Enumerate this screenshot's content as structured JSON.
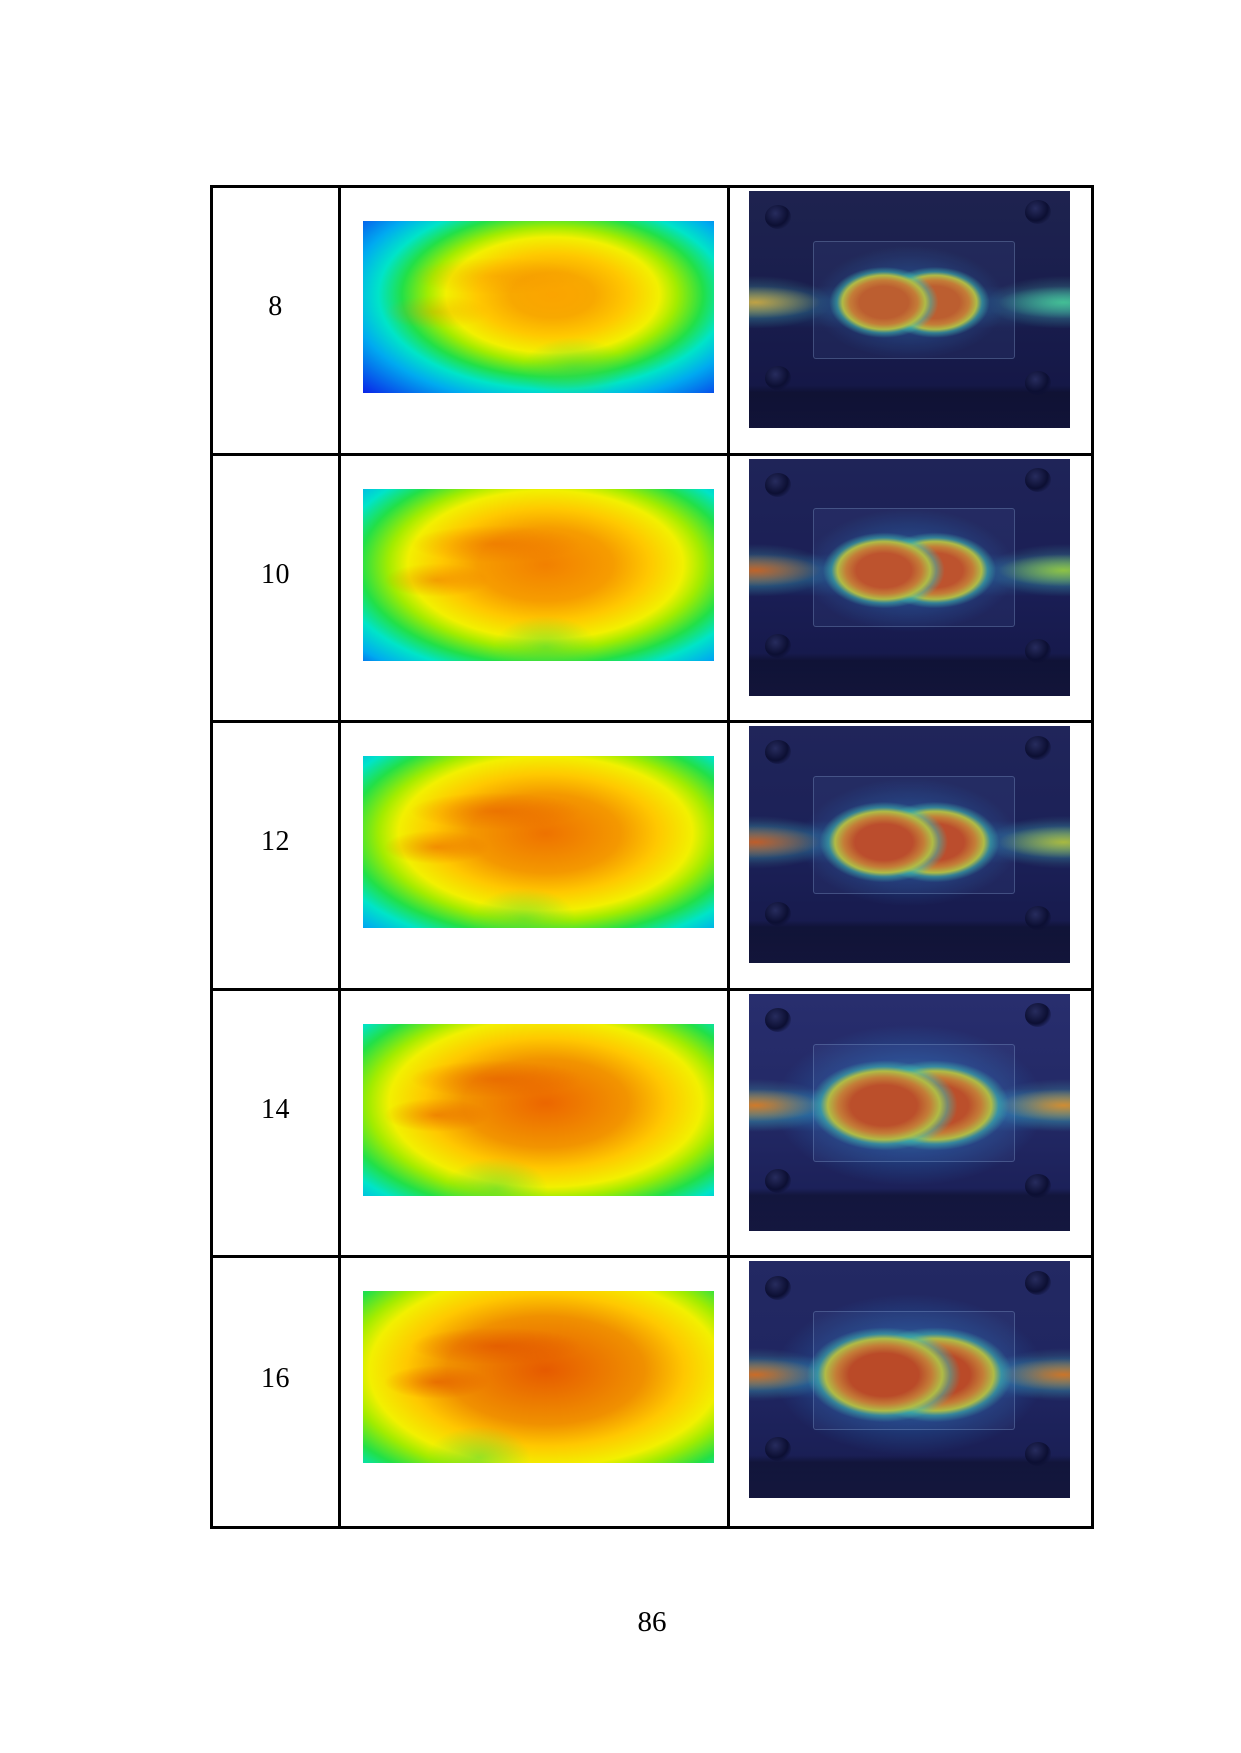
{
  "page": {
    "number": "86",
    "background": "#ffffff"
  },
  "table": {
    "border_color": "#000000",
    "description_note": "",
    "rows": [
      {
        "label": "8",
        "sim": {
          "spread_w": "74%",
          "spread_h": "82%",
          "center_x": "54%",
          "center_y": "43%",
          "hot": "#fba400",
          "core": "#f8a800",
          "core_stop": 16,
          "hot_band": "rgba(240,130,0,0.30)",
          "dip_x": "60%",
          "dip_y": "86%"
        },
        "exp": {
          "bg_top": "#1e234f",
          "bg": "#181c4c",
          "bg_bot": "#131544",
          "core": "#c75b20",
          "lobe_w": "17%",
          "lobe_h": "15%",
          "blob_y": "47%",
          "glow_w": "30%",
          "glow_h": "24%",
          "glow_a": 0.45,
          "stripe_left": "rgba(225,170,50,0.80)",
          "stripe_right": "rgba(70,205,150,0.80)",
          "band_a": 0.15
        }
      },
      {
        "label": "10",
        "sim": {
          "spread_w": "80%",
          "spread_h": "88%",
          "center_x": "52%",
          "center_y": "44%",
          "hot": "#f28000",
          "core": "#f69c00",
          "core_stop": 24,
          "hot_band": "rgba(232,95,0,0.45)",
          "dip_x": "52%",
          "dip_y": "92%"
        },
        "exp": {
          "bg_top": "#1f2458",
          "bg": "#1a1e55",
          "bg_bot": "#141747",
          "core": "#c84e1e",
          "lobe_w": "19%",
          "lobe_h": "16%",
          "blob_y": "47%",
          "glow_w": "33%",
          "glow_h": "26%",
          "glow_a": 0.5,
          "stripe_left": "rgba(205,95,30,0.90)",
          "stripe_right": "rgba(150,200,60,0.90)",
          "band_a": 0.2
        }
      },
      {
        "label": "12",
        "sim": {
          "spread_w": "82%",
          "spread_h": "88%",
          "center_x": "52%",
          "center_y": "45%",
          "hot": "#ee7200",
          "core": "#f49800",
          "core_stop": 26,
          "hot_band": "rgba(228,85,0,0.50)",
          "dip_x": "46%",
          "dip_y": "95%"
        },
        "exp": {
          "bg_top": "#20255a",
          "bg": "#1b2057",
          "bg_bot": "#151848",
          "core": "#c6481c",
          "lobe_w": "20%",
          "lobe_h": "17%",
          "blob_y": "49%",
          "glow_w": "34%",
          "glow_h": "27%",
          "glow_a": 0.5,
          "stripe_left": "rgba(205,88,30,0.90)",
          "stripe_right": "rgba(180,190,55,0.90)",
          "band_a": 0.2
        }
      },
      {
        "label": "14",
        "sim": {
          "spread_w": "84%",
          "spread_h": "92%",
          "center_x": "52%",
          "center_y": "46%",
          "hot": "#ec6600",
          "core": "#f29400",
          "core_stop": 28,
          "hot_band": "rgba(226,80,0,0.50)",
          "dip_x": "38%",
          "dip_y": "96%"
        },
        "exp": {
          "bg_top": "#282e6e",
          "bg": "#222864",
          "bg_bot": "#181c52",
          "core": "#c64a1a",
          "lobe_w": "23%",
          "lobe_h": "19%",
          "blob_y": "47%",
          "glow_w": "42%",
          "glow_h": "34%",
          "glow_a": 0.6,
          "stripe_left": "rgba(215,120,35,0.95)",
          "stripe_right": "rgba(215,140,45,0.95)",
          "band_a": 0.3
        }
      },
      {
        "label": "16",
        "sim": {
          "spread_w": "88%",
          "spread_h": "98%",
          "center_x": "52%",
          "center_y": "46%",
          "hot": "#e65a00",
          "core": "#f09000",
          "core_stop": 32,
          "hot_band": "rgba(222,70,0,0.55)",
          "dip_x": "33%",
          "dip_y": "97%"
        },
        "exp": {
          "bg_top": "#232963",
          "bg": "#1f2560",
          "bg_bot": "#171b4e",
          "core": "#c44417",
          "lobe_w": "24%",
          "lobe_h": "20%",
          "blob_y": "48%",
          "glow_w": "42%",
          "glow_h": "34%",
          "glow_a": 0.6,
          "stripe_left": "rgba(210,105,32,0.95)",
          "stripe_right": "rgba(210,115,35,0.95)",
          "band_a": 0.26
        }
      }
    ]
  }
}
